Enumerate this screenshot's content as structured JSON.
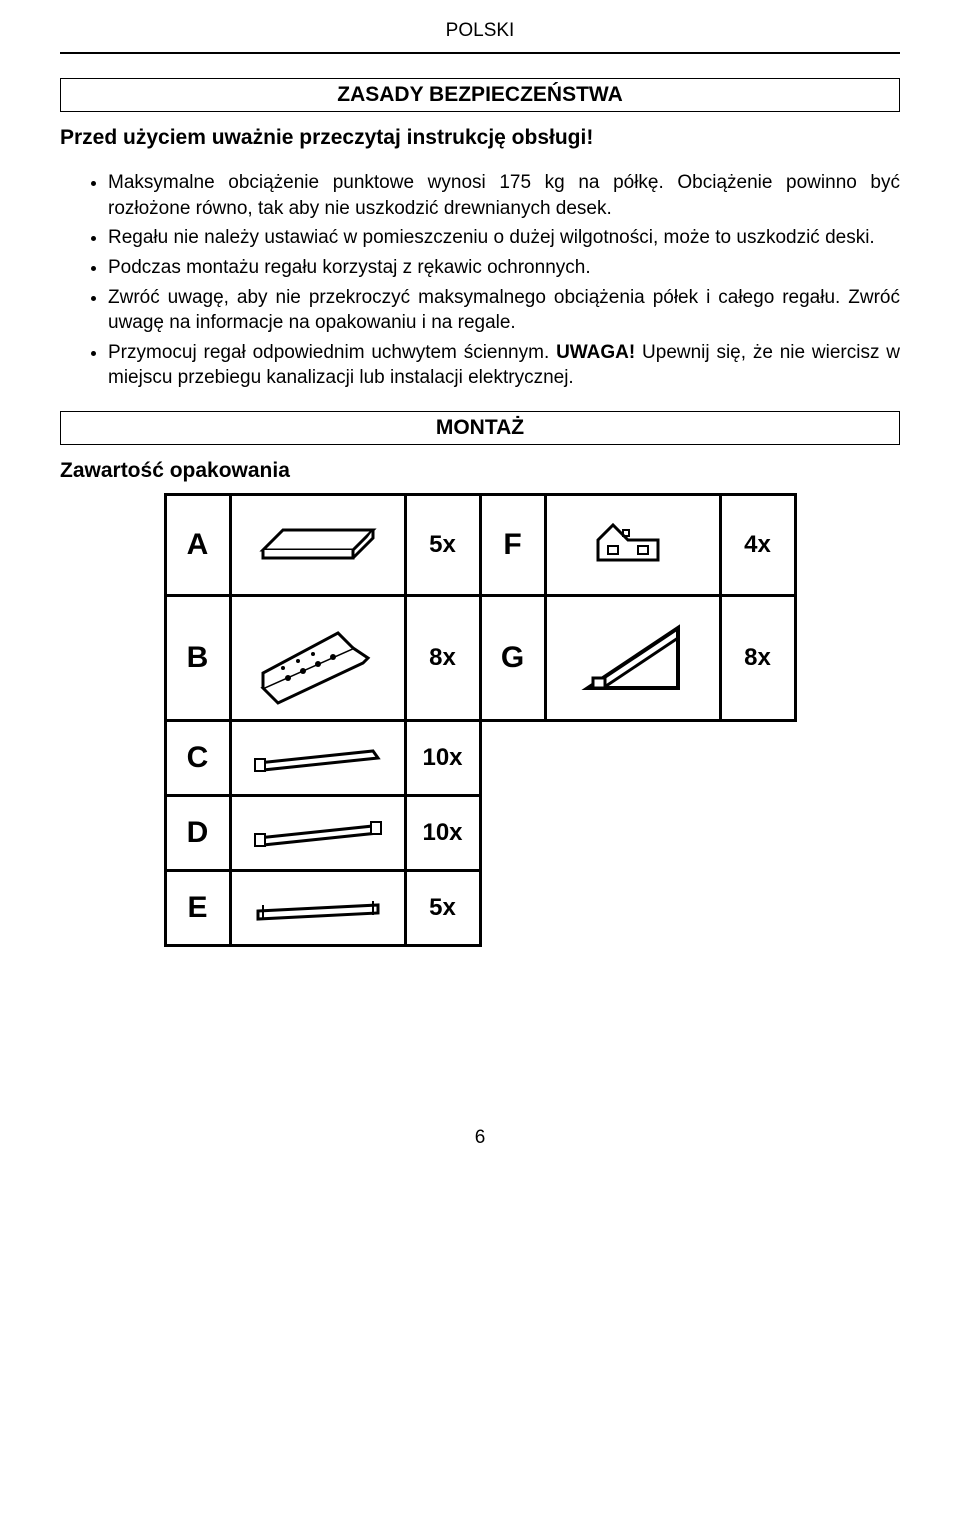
{
  "header": "POLSKI",
  "section1_title": "ZASADY BEZPIECZEŃSTWA",
  "intro": "Przed użyciem uważnie przeczytaj instrukcję obsługi!",
  "bullets": [
    "Maksymalne obciążenie punktowe wynosi 175 kg na półkę. Obciążenie powinno być rozłożone równo, tak aby nie uszkodzić drewnianych desek.",
    "Regału nie należy ustawiać w pomieszczeniu o dużej wilgotności, może to uszkodzić deski.",
    "Podczas montażu regału korzystaj z rękawic ochronnych.",
    "Zwróć uwagę, aby nie przekroczyć maksymalnego obciążenia półek i całego regału. Zwróć uwagę na informacje na opakowaniu i na regale.",
    "Przymocuj regał odpowiednim uchwytem ściennym. <b>UWAGA!</b> Upewnij się, że nie wiercisz w miejscu przebiegu kanalizacji lub instalacji elektrycznej."
  ],
  "section2_title": "MONTAŻ",
  "subhead": "Zawartość opakowania",
  "parts": {
    "left": [
      {
        "label": "A",
        "qty": "5x",
        "icon": "shelf"
      },
      {
        "label": "B",
        "qty": "8x",
        "icon": "angle"
      },
      {
        "label": "C",
        "qty": "10x",
        "icon": "bar1"
      },
      {
        "label": "D",
        "qty": "10x",
        "icon": "bar2"
      },
      {
        "label": "E",
        "qty": "5x",
        "icon": "bar3"
      }
    ],
    "right": [
      {
        "label": "F",
        "qty": "4x",
        "icon": "bracket"
      },
      {
        "label": "G",
        "qty": "8x",
        "icon": "triangle"
      }
    ]
  },
  "page_number": "6"
}
